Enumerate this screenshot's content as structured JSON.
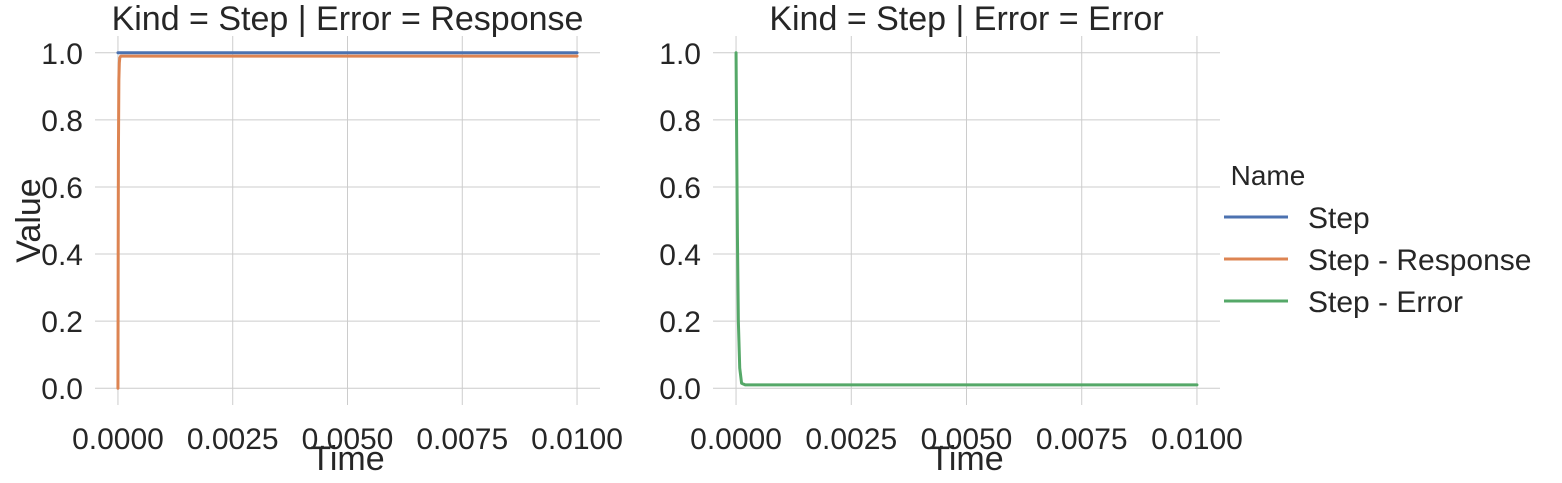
{
  "chart_data": [
    {
      "type": "line",
      "title": "Kind = Step | Error = Response",
      "xlabel": "Time",
      "ylabel": "Value",
      "xlim": [
        -0.0005,
        0.0105
      ],
      "ylim": [
        -0.05,
        1.05
      ],
      "xticks": [
        "0.0000",
        "0.0025",
        "0.0050",
        "0.0075",
        "0.0100"
      ],
      "yticks": [
        "0.0",
        "0.2",
        "0.4",
        "0.6",
        "0.8",
        "1.0"
      ],
      "grid": true,
      "series": [
        {
          "name": "Step",
          "color": "#4c72b0",
          "x": [
            0,
            0.01
          ],
          "y": [
            1.0,
            1.0
          ]
        },
        {
          "name": "Step - Response",
          "color": "#dd8452",
          "x": [
            0,
            5e-06,
            1e-05,
            2e-05,
            3e-05,
            4e-05,
            6e-05,
            0.0001,
            0.0002,
            0.01
          ],
          "y": [
            0.0,
            0.4,
            0.7,
            0.92,
            0.97,
            0.985,
            0.99,
            0.99,
            0.99,
            0.99
          ]
        }
      ]
    },
    {
      "type": "line",
      "title": "Kind = Step | Error = Error",
      "xlabel": "Time",
      "ylabel": "",
      "xlim": [
        -0.0005,
        0.0105
      ],
      "ylim": [
        -0.05,
        1.05
      ],
      "xticks": [
        "0.0000",
        "0.0025",
        "0.0050",
        "0.0075",
        "0.0100"
      ],
      "yticks": [
        "0.0",
        "0.2",
        "0.4",
        "0.6",
        "0.8",
        "1.0"
      ],
      "grid": true,
      "series": [
        {
          "name": "Step - Error",
          "color": "#55a868",
          "x": [
            0,
            1e-05,
            3e-05,
            5e-05,
            8e-05,
            0.00012,
            0.0002,
            0.0004,
            0.01
          ],
          "y": [
            1.0,
            0.8,
            0.45,
            0.2,
            0.06,
            0.015,
            0.01,
            0.01,
            0.01
          ]
        }
      ]
    }
  ],
  "legend": {
    "title": "Name",
    "placement": "right",
    "entries": [
      {
        "label": "Step",
        "color": "#4c72b0"
      },
      {
        "label": "Step - Response",
        "color": "#dd8452"
      },
      {
        "label": "Step - Error",
        "color": "#55a868"
      }
    ]
  }
}
